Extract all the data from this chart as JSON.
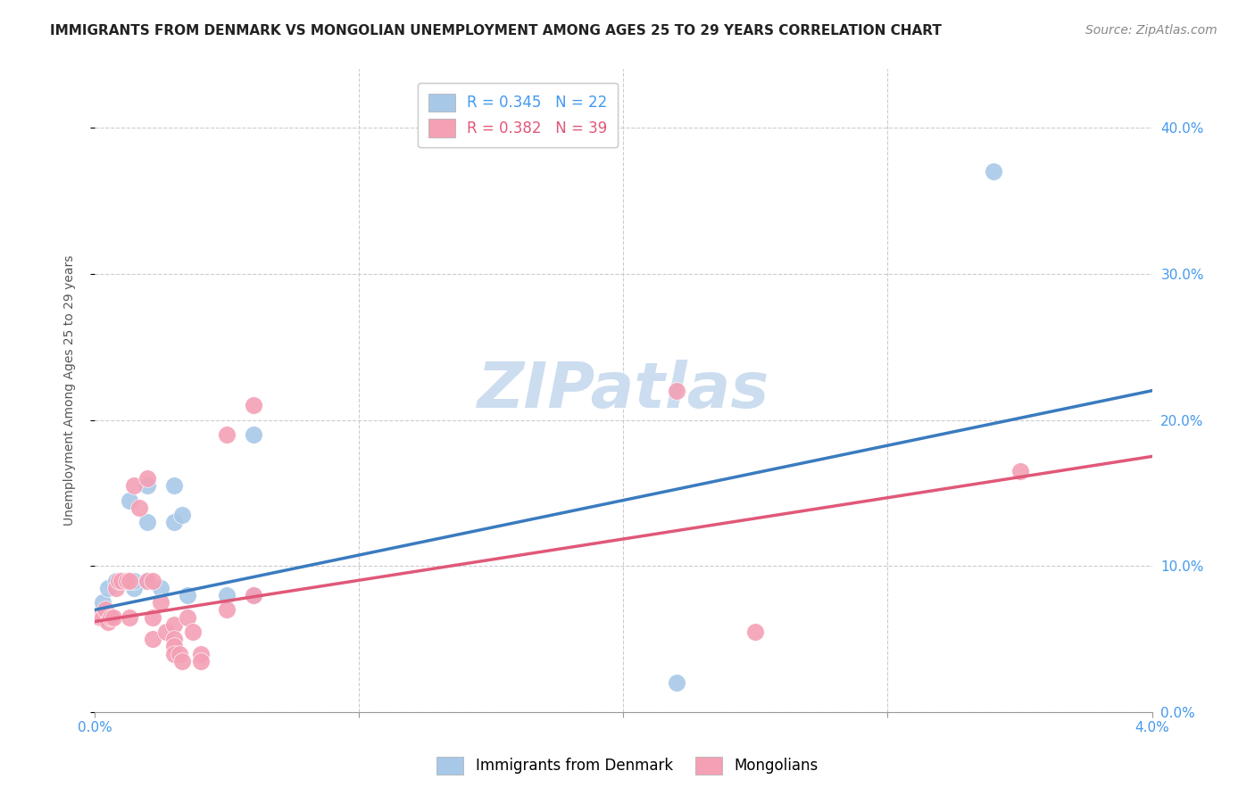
{
  "title": "IMMIGRANTS FROM DENMARK VS MONGOLIAN UNEMPLOYMENT AMONG AGES 25 TO 29 YEARS CORRELATION CHART",
  "source": "Source: ZipAtlas.com",
  "ylabel": "Unemployment Among Ages 25 to 29 years",
  "xlim": [
    0.0,
    0.04
  ],
  "ylim": [
    0.0,
    0.44
  ],
  "denmark_color": "#a8c8e8",
  "mongolian_color": "#f4a0b5",
  "denmark_line_color": "#3a7bbf",
  "mongolian_line_color": "#e05878",
  "watermark": "ZIPatlas",
  "denmark_scatter_x": [
    0.0003,
    0.0005,
    0.0008,
    0.001,
    0.001,
    0.0012,
    0.0013,
    0.0015,
    0.0015,
    0.002,
    0.002,
    0.002,
    0.0025,
    0.003,
    0.003,
    0.0033,
    0.0035,
    0.005,
    0.006,
    0.006,
    0.022,
    0.034
  ],
  "denmark_scatter_y": [
    0.075,
    0.085,
    0.09,
    0.09,
    0.09,
    0.09,
    0.145,
    0.085,
    0.09,
    0.13,
    0.09,
    0.155,
    0.085,
    0.155,
    0.13,
    0.135,
    0.08,
    0.08,
    0.08,
    0.19,
    0.02,
    0.37
  ],
  "mongolian_scatter_x": [
    0.0002,
    0.0003,
    0.0004,
    0.0005,
    0.0006,
    0.0007,
    0.0008,
    0.0009,
    0.001,
    0.0012,
    0.0013,
    0.0013,
    0.0015,
    0.0017,
    0.002,
    0.002,
    0.0022,
    0.0022,
    0.0022,
    0.0025,
    0.0027,
    0.003,
    0.003,
    0.003,
    0.003,
    0.0032,
    0.0033,
    0.0035,
    0.0037,
    0.004,
    0.004,
    0.005,
    0.005,
    0.006,
    0.006,
    0.022,
    0.025,
    0.035
  ],
  "mongolian_scatter_y": [
    0.065,
    0.065,
    0.07,
    0.062,
    0.065,
    0.065,
    0.085,
    0.09,
    0.09,
    0.09,
    0.065,
    0.09,
    0.155,
    0.14,
    0.09,
    0.16,
    0.09,
    0.065,
    0.05,
    0.075,
    0.055,
    0.06,
    0.05,
    0.045,
    0.04,
    0.04,
    0.035,
    0.065,
    0.055,
    0.04,
    0.035,
    0.07,
    0.19,
    0.08,
    0.21,
    0.22,
    0.055,
    0.165
  ],
  "denmark_trendline_x": [
    0.0,
    0.04
  ],
  "denmark_trendline_y": [
    0.07,
    0.22
  ],
  "mongolian_trendline_x": [
    0.0,
    0.04
  ],
  "mongolian_trendline_y": [
    0.062,
    0.175
  ],
  "background_color": "#ffffff",
  "grid_color": "#cccccc",
  "title_fontsize": 11,
  "axis_label_fontsize": 10,
  "tick_fontsize": 11,
  "legend_fontsize": 12,
  "watermark_fontsize": 52,
  "watermark_color": "#ccddf0",
  "source_fontsize": 10,
  "tick_color": "#4499ee",
  "ylabel_color": "#555555"
}
